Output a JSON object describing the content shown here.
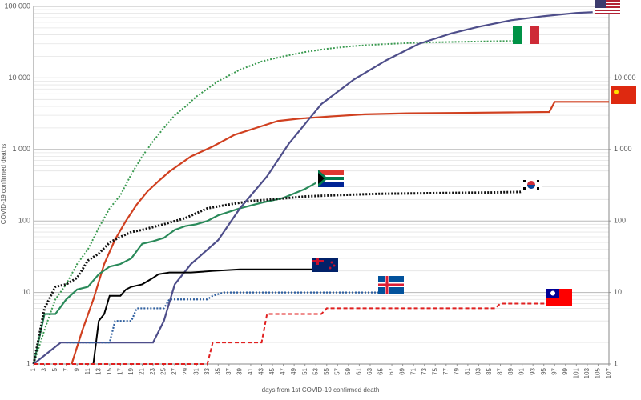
{
  "chart_data": {
    "type": "line",
    "log": true,
    "grid": true,
    "minor_grid": true,
    "y_label": "COVID-19 confirmed deaths",
    "x_label": "days from 1st COVID-19 confirmed death",
    "xlim": [
      1,
      107
    ],
    "xticks": [
      1,
      3,
      5,
      7,
      9,
      11,
      13,
      15,
      17,
      19,
      21,
      23,
      25,
      27,
      29,
      31,
      33,
      35,
      37,
      39,
      41,
      43,
      45,
      47,
      49,
      51,
      53,
      55,
      57,
      59,
      61,
      63,
      65,
      67,
      69,
      71,
      73,
      75,
      77,
      79,
      81,
      83,
      85,
      87,
      89,
      91,
      93,
      95,
      97,
      99,
      101,
      103,
      105,
      107
    ],
    "ylim": [
      1,
      100000
    ],
    "yticks": [
      {
        "value": 1,
        "label": "1"
      },
      {
        "value": 10,
        "label": "10"
      },
      {
        "value": 100,
        "label": "100"
      },
      {
        "value": 1000,
        "label": "1 000"
      },
      {
        "value": 10000,
        "label": "10 000"
      },
      {
        "value": 100000,
        "label": "100 000"
      }
    ],
    "y2lim": [
      1,
      100000
    ],
    "y2ticks": [
      {
        "value": 1,
        "label": "1"
      },
      {
        "value": 10,
        "label": "10"
      },
      {
        "value": 100,
        "label": "100"
      },
      {
        "value": 1000,
        "label": "1 000"
      },
      {
        "value": 10000,
        "label": "10 000"
      }
    ],
    "series": [
      {
        "color": "#3a9a50",
        "style": "dotted",
        "width": 2,
        "x": [
          1,
          3,
          5,
          7,
          9,
          11,
          13,
          15,
          17,
          19,
          21,
          23,
          25,
          27,
          29,
          31,
          35,
          39,
          43,
          47,
          51,
          55,
          59,
          63,
          67,
          71,
          75,
          80,
          85,
          90
        ],
        "values": [
          1,
          3,
          8,
          13,
          25,
          40,
          80,
          150,
          230,
          450,
          800,
          1300,
          2000,
          3000,
          4000,
          5500,
          9000,
          13000,
          17000,
          20000,
          23000,
          25500,
          27500,
          29000,
          30000,
          31000,
          31500,
          32000,
          32500,
          33000
        ]
      },
      {
        "color": "#d04020",
        "style": "solid",
        "width": 2.2,
        "x": [
          8,
          10,
          12,
          14,
          16,
          18,
          20,
          22,
          24,
          26,
          30,
          34,
          38,
          42,
          46,
          50,
          56,
          62,
          70,
          80,
          90,
          96,
          97,
          107
        ],
        "values": [
          1,
          3,
          8,
          25,
          55,
          100,
          170,
          260,
          360,
          490,
          800,
          1100,
          1600,
          2000,
          2500,
          2700,
          2900,
          3100,
          3200,
          3250,
          3300,
          3340,
          4630,
          4630
        ]
      },
      {
        "color": "#2a8a5a",
        "style": "solid",
        "width": 2.2,
        "x": [
          1,
          3,
          5,
          7,
          9,
          11,
          13,
          15,
          17,
          19,
          21,
          23,
          25,
          27,
          29,
          31,
          33,
          35,
          39,
          43,
          47,
          51,
          53
        ],
        "values": [
          1,
          5,
          5,
          8,
          11,
          12,
          18,
          23,
          25,
          30,
          48,
          52,
          58,
          75,
          85,
          90,
          100,
          120,
          150,
          180,
          210,
          280,
          340
        ]
      },
      {
        "color": "#111111",
        "style": "dotted",
        "width": 3,
        "x": [
          1,
          3,
          5,
          7,
          9,
          11,
          13,
          15,
          17,
          19,
          21,
          25,
          29,
          33,
          37,
          41,
          45,
          51,
          57,
          65,
          75,
          85,
          91
        ],
        "values": [
          1,
          6,
          12,
          13,
          16,
          28,
          35,
          50,
          60,
          70,
          75,
          90,
          110,
          150,
          170,
          190,
          200,
          220,
          230,
          240,
          245,
          250,
          255
        ]
      },
      {
        "color": "#4e4e8a",
        "style": "solid",
        "width": 2.2,
        "x": [
          1,
          6,
          23,
          25,
          27,
          30,
          35,
          39,
          44,
          48,
          54,
          60,
          66,
          72,
          78,
          83,
          89,
          95,
          101,
          104
        ],
        "values": [
          1,
          2,
          2,
          4,
          13,
          25,
          54,
          150,
          420,
          1200,
          4300,
          9500,
          17700,
          30000,
          42000,
          52000,
          64000,
          73000,
          81000,
          83000
        ]
      },
      {
        "color": "#000000",
        "style": "solid",
        "width": 2,
        "x": [
          12,
          13,
          14,
          15,
          17,
          18,
          19,
          21,
          23,
          24,
          26,
          30,
          34,
          39,
          53
        ],
        "values": [
          1,
          4,
          5,
          9,
          9,
          11,
          12,
          13,
          16,
          18,
          19,
          19,
          20,
          21,
          21
        ]
      },
      {
        "color": "#3060a0",
        "style": "dotted",
        "width": 2.2,
        "x": [
          7,
          15,
          16,
          19,
          20,
          25,
          26,
          33,
          34,
          36,
          66
        ],
        "values": [
          2,
          2,
          4,
          4,
          6,
          6,
          8,
          8,
          9,
          10,
          10
        ]
      },
      {
        "color": "#e02020",
        "style": "dashed",
        "width": 2,
        "x": [
          1,
          33,
          34,
          43,
          44,
          54,
          55,
          86,
          87,
          96
        ],
        "values": [
          1,
          1,
          2,
          2,
          5,
          5,
          6,
          6,
          7,
          7
        ]
      }
    ]
  }
}
